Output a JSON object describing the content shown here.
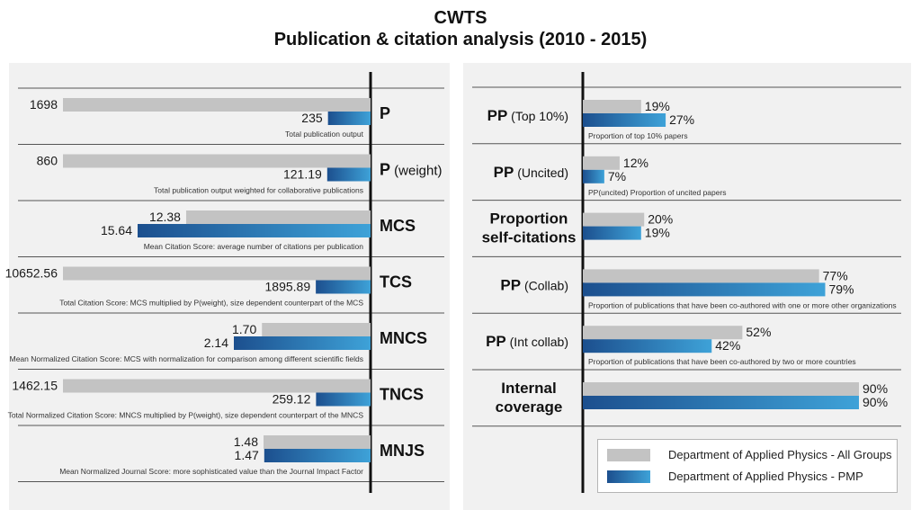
{
  "title": "CWTS",
  "subtitle": "Publication & citation analysis (2010 - 2015)",
  "colors": {
    "all_groups": "#c3c3c3",
    "pmp_dark": "#1c4f8e",
    "pmp_light": "#3ea2d8",
    "panel_bg": "#f1f1f1"
  },
  "legend": [
    {
      "name": "Department of Applied Physics - All Groups",
      "color": "#c3c3c3"
    },
    {
      "name": "Department of Applied Physics - PMP",
      "color": "#1c4f8e"
    }
  ],
  "chart_data": [
    {
      "type": "bar",
      "orientation": "horizontal",
      "series_names": [
        "Department of Applied Physics - All Groups",
        "Department of Applied Physics - PMP"
      ],
      "metrics": [
        {
          "id": "p",
          "label_bold": "P",
          "label_normal": "",
          "all": 1698,
          "all_label": "1698",
          "pmp": 235,
          "pmp_label": "235",
          "description": "Total publication output"
        },
        {
          "id": "p-weight",
          "label_bold": "P",
          "label_normal": "(weight)",
          "all": 860,
          "all_label": "860",
          "pmp": 121.19,
          "pmp_label": "121.19",
          "description": "Total publication output weighted for collaborative publications"
        },
        {
          "id": "mcs",
          "label_bold": "MCS",
          "label_normal": "",
          "all": 12.38,
          "all_label": "12.38",
          "pmp": 15.64,
          "pmp_label": "15.64",
          "description": "Mean Citation Score: average number of citations per publication"
        },
        {
          "id": "tcs",
          "label_bold": "TCS",
          "label_normal": "",
          "all": 10652.56,
          "all_label": "10652.56",
          "pmp": 1895.89,
          "pmp_label": "1895.89",
          "description": "Total Citation Score: MCS multiplied by P(weight), size dependent counterpart of the MCS"
        },
        {
          "id": "mncs",
          "label_bold": "MNCS",
          "label_normal": "",
          "all": 1.7,
          "all_label": "1.70",
          "pmp": 2.14,
          "pmp_label": "2.14",
          "description": "Mean Normalized Citation Score: MCS with normalization for comparison among different scientific fields"
        },
        {
          "id": "tncs",
          "label_bold": "TNCS",
          "label_normal": "",
          "all": 1462.15,
          "all_label": "1462.15",
          "pmp": 259.12,
          "pmp_label": "259.12",
          "description": "Total Normalized Citation Score: MNCS multiplied by P(weight), size dependent counterpart of the MNCS"
        },
        {
          "id": "mnjs",
          "label_bold": "MNJS",
          "label_normal": "",
          "all": 1.48,
          "all_label": "1.48",
          "pmp": 1.47,
          "pmp_label": "1.47",
          "description": "Mean Normalized Journal Score: more sophisticated value than the Journal Impact Factor"
        }
      ]
    },
    {
      "type": "bar",
      "orientation": "horizontal",
      "unit": "%",
      "xlim": [
        0,
        100
      ],
      "series_names": [
        "Department of Applied Physics - All Groups",
        "Department of Applied Physics - PMP"
      ],
      "metrics": [
        {
          "id": "pp-top10",
          "label_bold": "PP",
          "label_normal": "(Top 10%)",
          "all": 19,
          "all_label": "19%",
          "pmp": 27,
          "pmp_label": "27%",
          "description": "Proportion of top 10% papers"
        },
        {
          "id": "pp-uncited",
          "label_bold": "PP",
          "label_normal": "(Uncited)",
          "all": 12,
          "all_label": "12%",
          "pmp": 7,
          "pmp_label": "7%",
          "description": "PP(uncited) Proportion of uncited papers"
        },
        {
          "id": "proportion-self-citations",
          "label_bold": "Proportion",
          "label_bold2": "self-citations",
          "label_normal": "",
          "all": 20,
          "all_label": "20%",
          "pmp": 19,
          "pmp_label": "19%",
          "description": ""
        },
        {
          "id": "pp-collab",
          "label_bold": "PP",
          "label_normal": "(Collab)",
          "all": 77,
          "all_label": "77%",
          "pmp": 79,
          "pmp_label": "79%",
          "description": "Proportion of publications that have been co-authored with one or more other organizations"
        },
        {
          "id": "pp-int-collab",
          "label_bold": "PP",
          "label_normal": "(Int collab)",
          "all": 52,
          "all_label": "52%",
          "pmp": 42,
          "pmp_label": "42%",
          "description": "Proportion of publications that have been co-authored by two or more countries"
        },
        {
          "id": "internal-coverage",
          "label_bold": "Internal",
          "label_bold2": "coverage",
          "label_normal": "",
          "all": 90,
          "all_label": "90%",
          "pmp": 90,
          "pmp_label": "90%",
          "description": ""
        }
      ]
    }
  ]
}
